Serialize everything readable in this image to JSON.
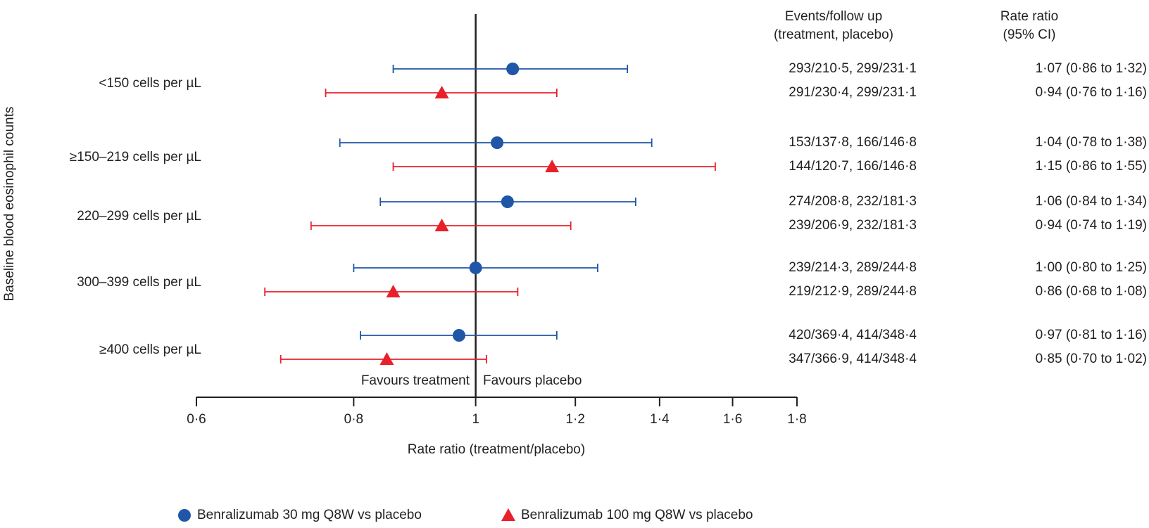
{
  "chart_data": {
    "type": "forest",
    "xscale": "log",
    "xlabel": "Rate ratio (treatment/placebo)",
    "ylabel": "Baseline blood eosinophil counts",
    "xlim": [
      0.6,
      1.8
    ],
    "xticks": [
      {
        "value": 0.6,
        "label": "0·6"
      },
      {
        "value": 0.8,
        "label": "0·8"
      },
      1,
      {
        "value": 1.2,
        "label": "1·2"
      },
      {
        "value": 1.4,
        "label": "1·4"
      },
      {
        "value": 1.6,
        "label": "1·6"
      },
      {
        "value": 1.8,
        "label": "1·8"
      }
    ],
    "reference": 1,
    "annotations": [
      "Favours treatment",
      "Favours placebo"
    ],
    "column_headers": [
      [
        "Events/follow up",
        "(treatment, placebo)"
      ],
      [
        "Rate ratio",
        "(95% CI)"
      ]
    ],
    "categories": [
      "<150 cells per µL",
      "≥150–219 cells per µL",
      "220–299 cells per µL",
      "300–399 cells per µL",
      "≥400 cells per µL"
    ],
    "series": [
      {
        "name": "Benralizumab 30 mg Q8W vs placebo",
        "color": "#1f56a8",
        "marker": "circle",
        "values": [
          1.07,
          1.04,
          1.06,
          1.0,
          0.97
        ],
        "ci_low": [
          0.86,
          0.78,
          0.84,
          0.8,
          0.81
        ],
        "ci_high": [
          1.32,
          1.38,
          1.34,
          1.25,
          1.16
        ],
        "events": [
          "293/210·5, 299/231·1",
          "153/137·8, 166/146·8",
          "274/208·8, 232/181·3",
          "239/214·3, 289/244·8",
          "420/369·4, 414/348·4"
        ],
        "value_labels": [
          "1·07 (0·86 to 1·32)",
          "1·04 (0·78 to 1·38)",
          "1·06 (0·84 to 1·34)",
          "1·00 (0·80 to 1·25)",
          "0·97 (0·81 to 1·16)"
        ]
      },
      {
        "name": "Benralizumab 100 mg Q8W vs placebo",
        "color": "#e8202a",
        "marker": "triangle",
        "values": [
          0.94,
          1.15,
          0.94,
          0.86,
          0.85
        ],
        "ci_low": [
          0.76,
          0.86,
          0.74,
          0.68,
          0.7
        ],
        "ci_high": [
          1.16,
          1.55,
          1.19,
          1.08,
          1.02
        ],
        "events": [
          "291/230·4, 299/231·1",
          "144/120·7, 166/146·8",
          "239/206·9, 232/181·3",
          "219/212·9, 289/244·8",
          "347/366·9, 414/348·4"
        ],
        "value_labels": [
          "0·94 (0·76 to 1·16)",
          "1·15 (0·86 to 1·55)",
          "0·94 (0·74 to 1·19)",
          "0·86 (0·68 to 1·08)",
          "0·85 (0·70 to 1·02)"
        ]
      }
    ]
  }
}
